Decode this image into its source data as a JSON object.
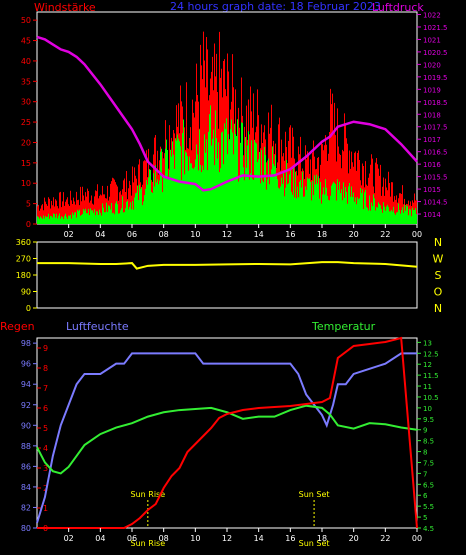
{
  "header": {
    "title": "24 hours graph date: 18 Februar 2023",
    "left_label": "Windstärke",
    "right_label": "Luftdruck"
  },
  "colors": {
    "wind_gust": "#ff0000",
    "wind_avg": "#00ff00",
    "pressure": "#e000e0",
    "direction": "#ffff00",
    "rain": "#ff0000",
    "humidity": "#7b7bff",
    "temperature": "#33ee33",
    "sun_markers": "#ffff00",
    "title": "#3333ff",
    "axis_frame": "#ffffff"
  },
  "chart_data": [
    {
      "type": "bar",
      "name": "wind-pressure",
      "x_ticks": [
        "02",
        "04",
        "06",
        "08",
        "10",
        "12",
        "14",
        "16",
        "18",
        "20",
        "22",
        "00"
      ],
      "x_range_hours": [
        0,
        24
      ],
      "y_left_ticks": [
        "0",
        "5",
        "10",
        "15",
        "20",
        "25",
        "30",
        "35",
        "40",
        "45",
        "50"
      ],
      "y_left_range": [
        0,
        52
      ],
      "y_right_ticks": [
        "1014",
        "1014.5",
        "1015",
        "1015.5",
        "1016",
        "1016.5",
        "1017",
        "1017.5",
        "1018",
        "1018.5",
        "1019",
        "1019.5",
        "1020",
        "1020.5",
        "1021",
        "1021.5",
        "1022"
      ],
      "y_right_range": [
        1013.6,
        1022.1
      ],
      "wind_gust_envelope": {
        "x": [
          0,
          1,
          2,
          3,
          4,
          5,
          6,
          7,
          8,
          9,
          10,
          10.5,
          11,
          11.5,
          12,
          13,
          14,
          15,
          16,
          17,
          18,
          18.5,
          19,
          20,
          21,
          22,
          23,
          24
        ],
        "y": [
          6,
          8,
          8,
          10,
          10,
          12,
          14,
          20,
          28,
          35,
          40,
          50,
          42,
          48,
          45,
          36,
          35,
          30,
          25,
          20,
          22,
          35,
          30,
          24,
          18,
          14,
          10,
          8
        ]
      },
      "wind_avg_envelope": {
        "x": [
          0,
          1,
          2,
          3,
          4,
          5,
          6,
          7,
          8,
          9,
          10,
          11,
          12,
          13,
          14,
          15,
          16,
          17,
          18,
          19,
          20,
          21,
          22,
          23,
          24
        ],
        "y": [
          2,
          3,
          3,
          4,
          5,
          6,
          8,
          13,
          20,
          25,
          28,
          30,
          28,
          25,
          22,
          20,
          15,
          13,
          12,
          12,
          10,
          8,
          6,
          5,
          4
        ]
      },
      "pressure": {
        "x": [
          0,
          0.5,
          1,
          1.5,
          2,
          2.5,
          3,
          4,
          5,
          6,
          6.5,
          7,
          8,
          9,
          10,
          10.5,
          11,
          12,
          13,
          14,
          15,
          16,
          17,
          18,
          18.5,
          19,
          20,
          21,
          22,
          23,
          24
        ],
        "y": [
          1021.1,
          1021.0,
          1020.8,
          1020.6,
          1020.5,
          1020.3,
          1020.0,
          1019.2,
          1018.3,
          1017.4,
          1016.8,
          1016.1,
          1015.5,
          1015.3,
          1015.2,
          1014.95,
          1015.0,
          1015.3,
          1015.55,
          1015.5,
          1015.55,
          1015.8,
          1016.3,
          1016.9,
          1017.1,
          1017.5,
          1017.7,
          1017.6,
          1017.4,
          1016.8,
          1016.1
        ]
      }
    },
    {
      "type": "line",
      "name": "wind-direction",
      "y_left_ticks": [
        "0",
        "90",
        "180",
        "270",
        "360"
      ],
      "y_right_labels": [
        "N",
        "W",
        "S",
        "O",
        "N"
      ],
      "y_range": [
        0,
        360
      ],
      "direction": {
        "x": [
          0,
          2,
          4,
          5,
          6,
          6.3,
          7,
          8,
          10,
          12,
          14,
          16,
          18,
          19,
          20,
          22,
          24
        ],
        "y": [
          245,
          245,
          240,
          240,
          245,
          215,
          230,
          235,
          235,
          238,
          240,
          238,
          250,
          250,
          245,
          240,
          225
        ]
      }
    },
    {
      "type": "line",
      "name": "rain-humidity-temperature",
      "labels": {
        "rain": "Regen",
        "humidity": "Luftfeuchte",
        "temperature": "Temperatur"
      },
      "x_ticks": [
        "02",
        "04",
        "06",
        "08",
        "10",
        "12",
        "14",
        "16",
        "18",
        "20",
        "22",
        "00"
      ],
      "rain_ticks": [
        "0",
        "1",
        "2",
        "3",
        "4",
        "5",
        "6",
        "7",
        "8",
        "9"
      ],
      "rain_range": [
        0,
        9.5
      ],
      "humidity_ticks": [
        "80",
        "82",
        "84",
        "86",
        "88",
        "90",
        "92",
        "94",
        "96",
        "98"
      ],
      "humidity_range": [
        80,
        98.5
      ],
      "temperature_ticks": [
        "4.5",
        "5",
        "5.5",
        "6",
        "6.5",
        "7",
        "7.5",
        "8",
        "8.5",
        "9",
        "9.5",
        "10",
        "10.5",
        "11",
        "11.5",
        "12",
        "12.5",
        "13"
      ],
      "temperature_range": [
        4.5,
        13.2
      ],
      "rain": {
        "x": [
          0,
          5.5,
          6,
          6.5,
          7,
          7.5,
          8,
          8.5,
          9,
          9.5,
          10,
          10.5,
          11,
          11.5,
          12,
          13,
          14,
          15,
          16,
          17,
          18,
          18.5,
          19,
          20,
          21,
          22,
          23,
          24
        ],
        "y": [
          0,
          0,
          0.2,
          0.5,
          0.9,
          1.2,
          2.0,
          2.6,
          3.0,
          3.8,
          4.2,
          4.6,
          5.0,
          5.5,
          5.7,
          5.9,
          6.0,
          6.05,
          6.1,
          6.2,
          6.3,
          6.5,
          8.5,
          9.1,
          9.2,
          9.3,
          9.5,
          0
        ]
      },
      "humidity": {
        "x": [
          0,
          0.5,
          1,
          1.5,
          2,
          2.5,
          3,
          4,
          5,
          5.5,
          6,
          7,
          8,
          9,
          10,
          10.5,
          11,
          12,
          13,
          14,
          15,
          16,
          16.5,
          17,
          17.5,
          18,
          18.3,
          18.7,
          19,
          19.5,
          20,
          21,
          22,
          23,
          24
        ],
        "y": [
          80.5,
          83,
          87,
          90,
          92,
          94,
          95,
          95,
          96,
          96,
          97,
          97,
          97,
          97,
          97,
          96,
          96,
          96,
          96,
          96,
          96,
          96,
          95,
          93,
          92,
          91,
          90,
          92,
          94,
          94,
          95,
          95.5,
          96,
          97,
          97
        ]
      },
      "temperature": {
        "x": [
          0,
          0.5,
          1,
          1.5,
          2,
          2.5,
          3,
          4,
          5,
          6,
          7,
          8,
          9,
          10,
          11,
          12,
          13,
          14,
          15,
          16,
          17,
          18,
          18.5,
          19,
          20,
          21,
          22,
          23,
          24
        ],
        "y": [
          8.2,
          7.5,
          7.1,
          7.0,
          7.3,
          7.8,
          8.3,
          8.8,
          9.1,
          9.3,
          9.6,
          9.8,
          9.9,
          9.95,
          10.0,
          9.8,
          9.5,
          9.6,
          9.6,
          9.9,
          10.1,
          10.0,
          9.7,
          9.2,
          9.05,
          9.3,
          9.25,
          9.1,
          9.0
        ]
      },
      "annotations": [
        {
          "label": "Sun Rise",
          "hour": 7.0,
          "bottom_label": "Sun Rise"
        },
        {
          "label": "Sun Set",
          "hour": 17.5,
          "bottom_label": "Sun Set"
        }
      ]
    }
  ]
}
